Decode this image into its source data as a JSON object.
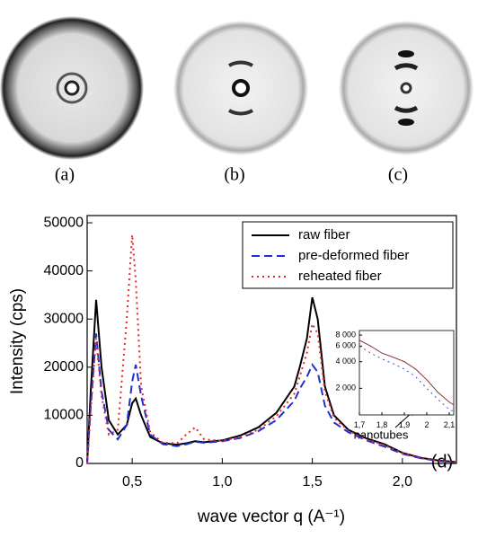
{
  "images": {
    "labels": [
      "(a)",
      "(b)",
      "(c)"
    ]
  },
  "chart_data": [
    {
      "type": "line",
      "xlabel": "wave vector q (A⁻¹)",
      "ylabel": "Intensity (cps)",
      "annotations": [
        "nanotubes",
        "(d)"
      ],
      "legend": "upper right",
      "x": [
        0.25,
        0.27,
        0.3,
        0.33,
        0.37,
        0.42,
        0.47,
        0.5,
        0.52,
        0.55,
        0.6,
        0.67,
        0.75,
        0.8,
        0.85,
        0.9,
        1.0,
        1.1,
        1.2,
        1.3,
        1.4,
        1.43,
        1.47,
        1.5,
        1.53,
        1.57,
        1.62,
        1.7,
        1.8,
        1.9,
        2.0,
        2.1,
        2.2,
        2.3
      ],
      "series": [
        {
          "name": "raw fiber",
          "color": "#000000",
          "style": "solid",
          "values": [
            0,
            15000,
            34000,
            20000,
            9000,
            6000,
            8000,
            12500,
            13500,
            10000,
            5500,
            4200,
            3900,
            4200,
            4600,
            4400,
            4800,
            5800,
            7500,
            10500,
            16000,
            20000,
            26000,
            34500,
            30000,
            16000,
            10000,
            7000,
            5200,
            4000,
            2200,
            1200,
            600,
            300
          ]
        },
        {
          "name": "pre-deformed fiber",
          "color": "#1f2fd6",
          "style": "dashed",
          "values": [
            0,
            12000,
            27000,
            15000,
            7000,
            5000,
            8000,
            17000,
            20500,
            14000,
            6000,
            4000,
            3600,
            4000,
            4500,
            4300,
            4600,
            5300,
            6700,
            9000,
            13000,
            15500,
            18000,
            20500,
            19000,
            12000,
            8500,
            6500,
            4800,
            3500,
            2000,
            1100,
            500,
            250
          ]
        },
        {
          "name": "reheated fiber",
          "color": "#e8262a",
          "style": "dotted",
          "values": [
            0,
            11000,
            26000,
            14000,
            6000,
            7000,
            30000,
            47500,
            38000,
            16000,
            6500,
            4300,
            4200,
            6000,
            7500,
            5000,
            4700,
            5500,
            7000,
            9800,
            14500,
            18000,
            23000,
            29000,
            27000,
            15000,
            9500,
            6800,
            5000,
            3800,
            2100,
            1100,
            550,
            300
          ]
        }
      ],
      "xlim": [
        0.25,
        2.3
      ],
      "ylim": [
        0,
        51500
      ],
      "xticks": [
        {
          "value": 0.5,
          "label": "0,5"
        },
        {
          "value": 1.0,
          "label": "1,0"
        },
        {
          "value": 1.5,
          "label": "1,5"
        },
        {
          "value": 2.0,
          "label": "2,0"
        }
      ],
      "yticks": [
        0,
        10000,
        20000,
        30000,
        40000,
        50000
      ]
    },
    {
      "type": "line",
      "log_y": true,
      "x": [
        1.7,
        1.75,
        1.8,
        1.85,
        1.9,
        1.95,
        2.0,
        2.05,
        2.1,
        2.12
      ],
      "series": [
        {
          "color": "#7a2a2a",
          "style": "solid",
          "values": [
            7000,
            6000,
            5000,
            4500,
            4000,
            3300,
            2500,
            1800,
            1400,
            1300
          ]
        },
        {
          "color": "#3a3ae0",
          "style": "dotted",
          "values": [
            6000,
            5000,
            4300,
            3800,
            3300,
            2700,
            2000,
            1500,
            1150,
            1100
          ]
        }
      ],
      "xlim": [
        1.7,
        2.12
      ],
      "ylim": [
        1000,
        9000
      ],
      "xticks": [
        {
          "value": 1.7,
          "label": "1,7"
        },
        {
          "value": 1.8,
          "label": "1,8"
        },
        {
          "value": 1.9,
          "label": "1,9"
        },
        2,
        {
          "value": 2.1,
          "label": "2,1"
        }
      ],
      "yticks": [
        {
          "value": 2000,
          "label": "2 000"
        },
        {
          "value": 4000,
          "label": "4 000"
        },
        {
          "value": 6000,
          "label": "6 000"
        },
        {
          "value": 8000,
          "label": "8 000"
        }
      ]
    }
  ]
}
